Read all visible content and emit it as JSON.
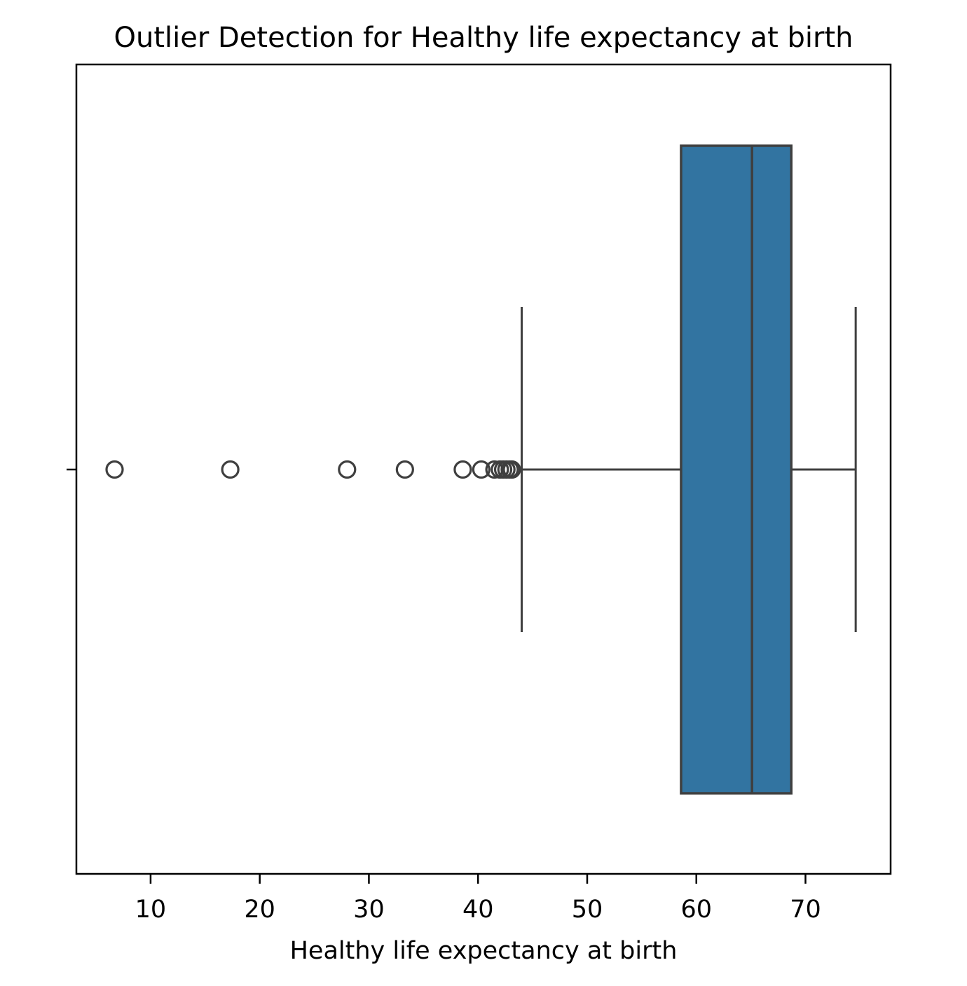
{
  "chart_data": {
    "type": "box",
    "title": "Outlier Detection for Healthy life expectancy at birth",
    "xlabel": "Healthy life expectancy at birth",
    "ylabel": "",
    "xlim": [
      3.2,
      77.8
    ],
    "xticks": [
      10,
      20,
      30,
      40,
      50,
      60,
      70
    ],
    "xtick_labels": [
      "10",
      "20",
      "30",
      "40",
      "50",
      "60",
      "70"
    ],
    "grid": false,
    "legend": "none",
    "box": {
      "whisker_low": 44.0,
      "q1": 58.6,
      "median": 65.1,
      "q3": 68.7,
      "whisker_high": 74.6
    },
    "outliers": [
      6.7,
      17.3,
      28.0,
      33.3,
      38.6,
      40.3,
      41.5,
      42.0,
      42.3,
      42.6,
      42.9,
      43.1
    ],
    "colors": {
      "box_fill": "#3274a1",
      "line": "#3f3f3f",
      "frame": "#000000"
    }
  }
}
